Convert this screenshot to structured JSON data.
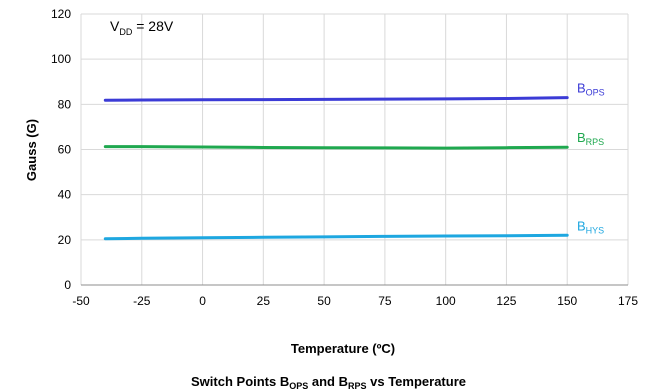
{
  "chart_data": {
    "type": "line",
    "annotation": {
      "main": "V",
      "sub": "DD",
      "rest": " = 28V"
    },
    "xlabel": "Temperature (ºC)",
    "ylabel": "Gauss (G)",
    "xlim": [
      -50,
      175
    ],
    "ylim": [
      0,
      120
    ],
    "xticks": [
      "-50",
      "-25",
      "0",
      "25",
      "50",
      "75",
      "100",
      "125",
      "150",
      "175"
    ],
    "yticks": [
      "0",
      "20",
      "40",
      "60",
      "80",
      "100",
      "120"
    ],
    "grid": true,
    "series": [
      {
        "name": "B",
        "sub": "OPS",
        "color": "#3b3bd6",
        "x": [
          -40,
          -25,
          0,
          25,
          50,
          75,
          100,
          125,
          150
        ],
        "y": [
          81.8,
          81.9,
          82.0,
          82.1,
          82.2,
          82.3,
          82.4,
          82.6,
          83.0
        ]
      },
      {
        "name": "B",
        "sub": "RPS",
        "color": "#1fa84f",
        "x": [
          -40,
          -25,
          0,
          25,
          50,
          75,
          100,
          125,
          150
        ],
        "y": [
          61.3,
          61.3,
          61.1,
          60.9,
          60.8,
          60.7,
          60.6,
          60.8,
          61.0
        ]
      },
      {
        "name": "B",
        "sub": "HYS",
        "color": "#1ea7e0",
        "x": [
          -40,
          -25,
          0,
          25,
          50,
          75,
          100,
          125,
          150
        ],
        "y": [
          20.5,
          20.7,
          20.9,
          21.1,
          21.3,
          21.5,
          21.7,
          21.8,
          22.0
        ]
      }
    ],
    "caption": {
      "a": "Switch Points B",
      "a_sub": "OPS",
      "b": " and B",
      "b_sub": "RPS",
      "c": " vs Temperature"
    }
  }
}
